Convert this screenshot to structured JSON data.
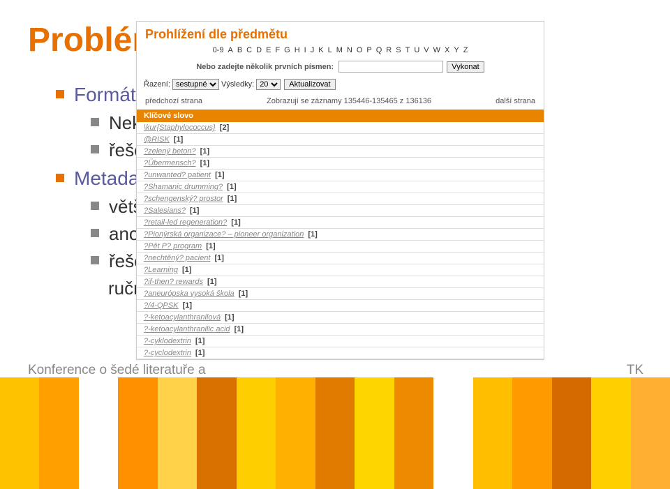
{
  "slide": {
    "title": "Problémy",
    "bullets": {
      "b1a": "Formátování p",
      "b2a": "Nekompletní,",
      "b2b": "řešení: návod",
      "b1b": "Metadata",
      "b2c": "většina strojo",
      "b2d": "anotace, klíčo",
      "b2e": "řešení: varian",
      "b2f": "ruční opravy p"
    },
    "footer_left": "Konference o šedé literatuře a",
    "footer_right": "TK"
  },
  "panel": {
    "title": "Prohlížení dle předmětu",
    "alpha": [
      "0-9",
      "A",
      "B",
      "C",
      "D",
      "E",
      "F",
      "G",
      "H",
      "I",
      "J",
      "K",
      "L",
      "M",
      "N",
      "O",
      "P",
      "Q",
      "R",
      "S",
      "T",
      "U",
      "V",
      "W",
      "X",
      "Y",
      "Z"
    ],
    "search_label": "Nebo zadejte několik prvních písmen:",
    "search_value": "",
    "btn_go": "Vykonat",
    "sort_label": "Řazení:",
    "sort_value": "sestupné",
    "results_label": "Výsledky:",
    "results_value": "20",
    "btn_refresh": "Aktualizovat",
    "prev": "předchozí strana",
    "showing": "Zobrazují se záznamy 135446-135465 z 136136",
    "next": "další strana",
    "col_head": "Klíčové slovo",
    "rows": [
      {
        "term": "\\kur{Staphylococcus}",
        "count": "[2]"
      },
      {
        "term": "@RISK",
        "count": "[1]"
      },
      {
        "term": "?zelený beton?",
        "count": "[1]"
      },
      {
        "term": "?Übermensch?",
        "count": "[1]"
      },
      {
        "term": "?unwanted? patient",
        "count": "[1]"
      },
      {
        "term": "?Shamanic drumming?",
        "count": "[1]"
      },
      {
        "term": "?schengenský? prostor",
        "count": "[1]"
      },
      {
        "term": "?Salesians?",
        "count": "[1]"
      },
      {
        "term": "?retail-led regeneration?",
        "count": "[1]"
      },
      {
        "term": "?Pionýrská organizace? – pioneer organization",
        "count": "[1]"
      },
      {
        "term": "?Pět P? program",
        "count": "[1]"
      },
      {
        "term": "?nechtěný? pacient",
        "count": "[1]"
      },
      {
        "term": "?Learning",
        "count": "[1]"
      },
      {
        "term": "?if-then? rewards",
        "count": "[1]"
      },
      {
        "term": "?aneurópska vysoká škola",
        "count": "[1]"
      },
      {
        "term": "?/4-QPSK",
        "count": "[1]"
      },
      {
        "term": "?-ketoacylanthranilová",
        "count": "[1]"
      },
      {
        "term": "?-ketoacylanthranilic acid",
        "count": "[1]"
      },
      {
        "term": "?-cyklodextrin",
        "count": "[1]"
      },
      {
        "term": "?-cyclodextrin",
        "count": "[1]"
      }
    ]
  }
}
